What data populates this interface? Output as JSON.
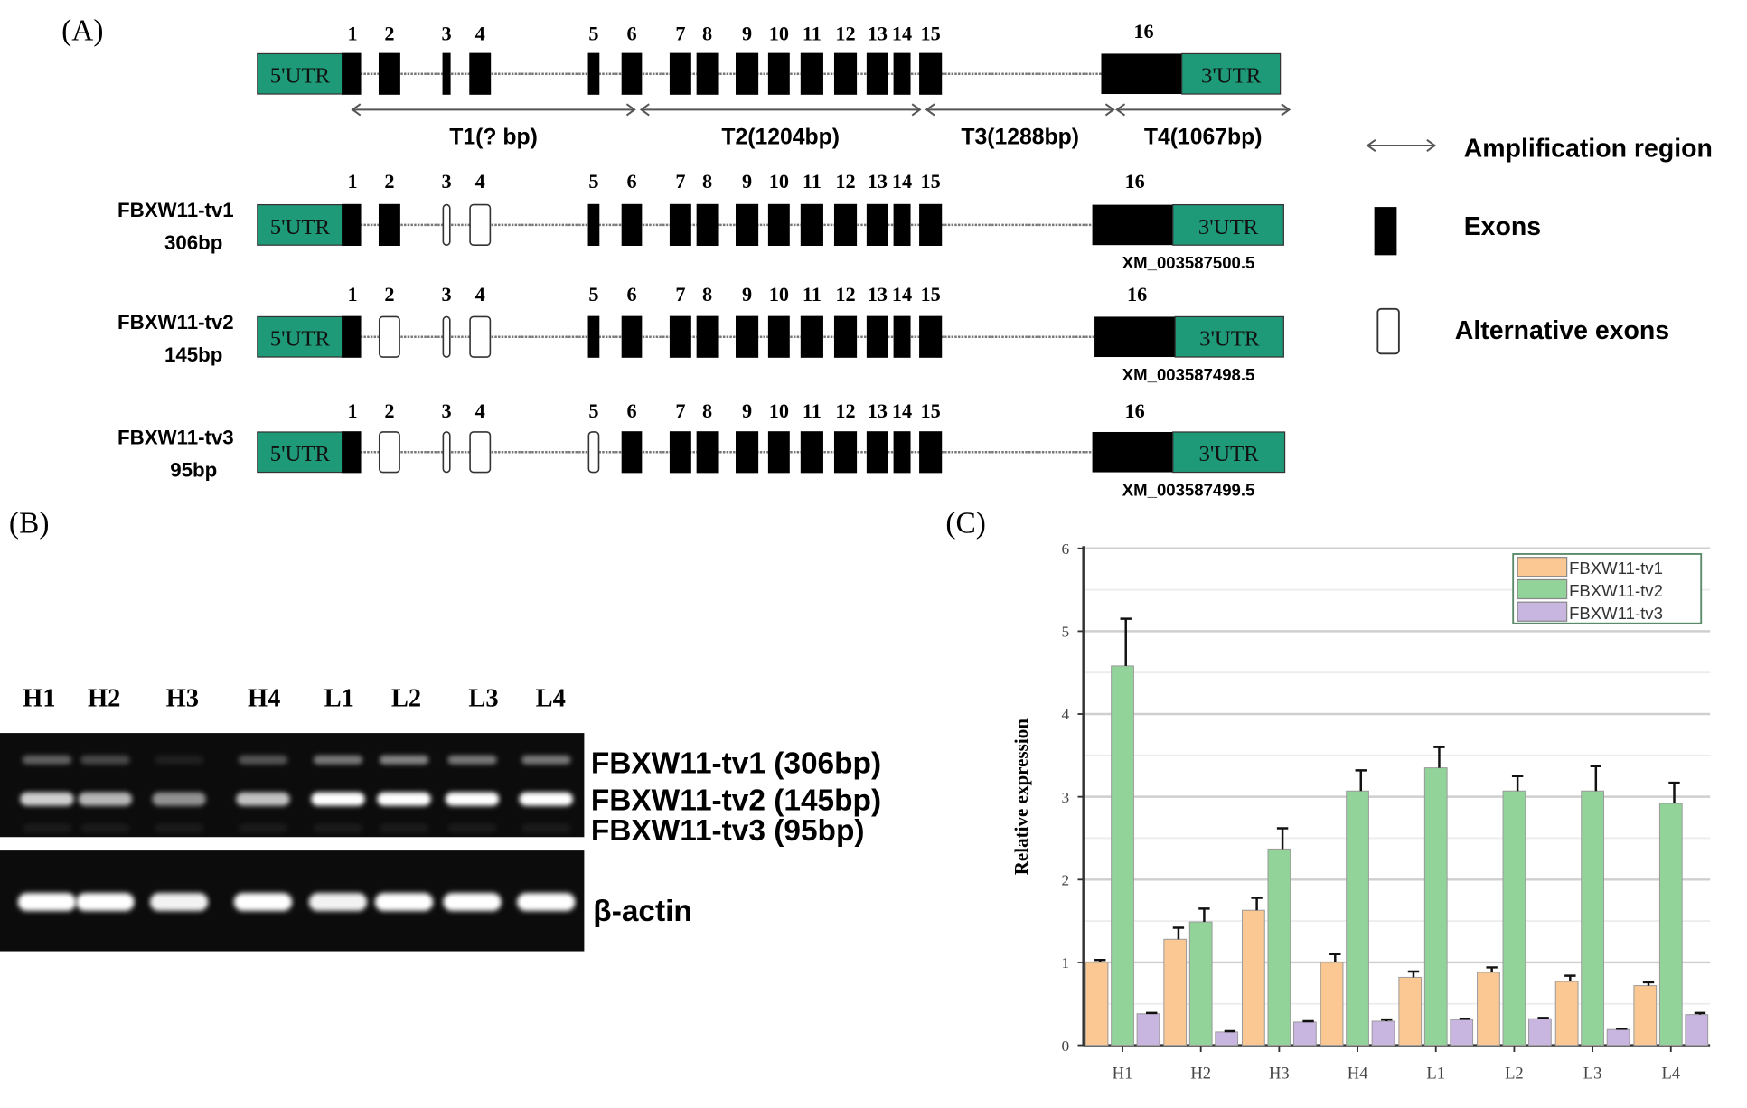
{
  "panels": {
    "a": "(A)",
    "b": "(B)",
    "c": "(C)"
  },
  "gene_structure": {
    "utr5_label": "5'UTR",
    "utr3_label": "3'UTR",
    "exon_numbers": [
      "1",
      "2",
      "3",
      "4",
      "5",
      "6",
      "7",
      "8",
      "9",
      "10",
      "11",
      "12",
      "13",
      "14",
      "15",
      "16"
    ],
    "amplification_regions": [
      "T1(? bp)",
      "T2(1204bp)",
      "T3(1288bp)",
      "T4(1067bp)"
    ],
    "transcripts": [
      {
        "name": "FBXW11-tv1",
        "size": "306bp",
        "accession": "XM_003587500.5",
        "alternative_exons": [
          3,
          4
        ]
      },
      {
        "name": "FBXW11-tv2",
        "size": "145bp",
        "accession": "XM_003587498.5",
        "alternative_exons": [
          2,
          3,
          4
        ]
      },
      {
        "name": "FBXW11-tv3",
        "size": "95bp",
        "accession": "XM_003587499.5",
        "alternative_exons": [
          2,
          3,
          4,
          5
        ]
      }
    ],
    "legend": {
      "amplification": "Amplification region",
      "exons": "Exons",
      "alternative": "Alternative exons"
    },
    "colors": {
      "utr": "#1f9a78",
      "exon": "#000000"
    }
  },
  "gel": {
    "lanes": [
      "H1",
      "H2",
      "H3",
      "H4",
      "L1",
      "L2",
      "L3",
      "L4"
    ],
    "band_labels": [
      "FBXW11-tv1 (306bp)",
      "FBXW11-tv2 (145bp)",
      "FBXW11-tv3 (95bp)"
    ],
    "control_label": "β-actin"
  },
  "chart_data": {
    "type": "bar",
    "categories": [
      "H1",
      "H2",
      "H3",
      "H4",
      "L1",
      "L2",
      "L3",
      "L4"
    ],
    "series": [
      {
        "name": "FBXW11-tv1",
        "color": "#fbc792",
        "values": [
          1.0,
          1.28,
          1.63,
          1.0,
          0.82,
          0.88,
          0.77,
          0.72
        ],
        "errors": [
          0.03,
          0.14,
          0.15,
          0.1,
          0.07,
          0.06,
          0.07,
          0.04
        ]
      },
      {
        "name": "FBXW11-tv2",
        "color": "#92d39a",
        "values": [
          4.58,
          1.49,
          2.37,
          3.07,
          3.35,
          3.07,
          3.07,
          2.92
        ],
        "errors": [
          0.57,
          0.16,
          0.25,
          0.25,
          0.25,
          0.18,
          0.3,
          0.25
        ]
      },
      {
        "name": "FBXW11-tv3",
        "color": "#c8b6e0",
        "values": [
          0.38,
          0.16,
          0.28,
          0.29,
          0.31,
          0.32,
          0.19,
          0.37
        ],
        "errors": [
          0.01,
          0.01,
          0.01,
          0.02,
          0.01,
          0.01,
          0.01,
          0.02
        ]
      }
    ],
    "ylabel": "Relative expression",
    "xlabel": "",
    "ylim": [
      0,
      6
    ],
    "yticks": [
      "0",
      "1",
      "2",
      "3",
      "4",
      "5",
      "6"
    ],
    "grid": true,
    "legend": "top-right"
  }
}
